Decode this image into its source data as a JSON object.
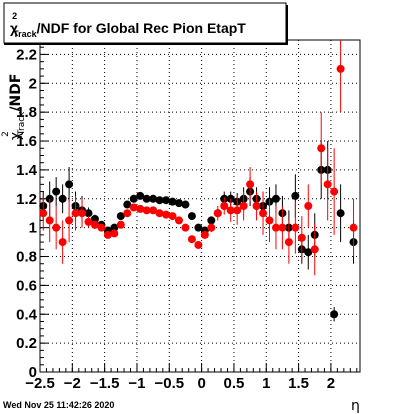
{
  "window": {
    "timestamp": "Wed Nov 25 11:42:26 2020"
  },
  "chart_data": {
    "type": "scatter",
    "title": {
      "chi": "χ",
      "sup": "2",
      "sub": "Track",
      "rest": "/NDF for Global Rec Pion EtapT"
    },
    "xlabel": "η",
    "ylabel": {
      "chi": "χ",
      "sup": "2",
      "sub": "Track",
      "rest": "/NDF"
    },
    "xlim": [
      -2.5,
      2.45
    ],
    "ylim": [
      0,
      2.3
    ],
    "grid": true,
    "x_ticks": [
      -2.5,
      -2,
      -1.5,
      -1,
      -0.5,
      0,
      0.5,
      1,
      1.5,
      2
    ],
    "x_tick_labels": [
      "−2.5",
      "−2",
      "−1.5",
      "−1",
      "−0.5",
      "0",
      "0.5",
      "1",
      "1.5",
      "2"
    ],
    "y_ticks": [
      0,
      0.2,
      0.4,
      0.6,
      0.8,
      1,
      1.2,
      1.4,
      1.6,
      1.8,
      2,
      2.2
    ],
    "y_tick_labels": [
      "0",
      "0.2",
      "0.4",
      "0.6",
      "0.8",
      "1",
      "1.2",
      "1.4",
      "1.6",
      "1.8",
      "2",
      "2.2"
    ],
    "series": [
      {
        "color": "#000000",
        "x": [
          -2.45,
          -2.35,
          -2.25,
          -2.15,
          -2.05,
          -1.95,
          -1.85,
          -1.75,
          -1.65,
          -1.55,
          -1.45,
          -1.35,
          -1.25,
          -1.15,
          -1.05,
          -0.95,
          -0.85,
          -0.75,
          -0.65,
          -0.55,
          -0.45,
          -0.35,
          -0.25,
          -0.15,
          -0.05,
          0.05,
          0.15,
          0.25,
          0.35,
          0.45,
          0.55,
          0.65,
          0.75,
          0.85,
          0.95,
          1.05,
          1.15,
          1.25,
          1.35,
          1.45,
          1.55,
          1.65,
          1.75,
          1.85,
          1.95,
          2.05,
          2.15,
          2.35
        ],
        "y": [
          1.15,
          1.2,
          1.25,
          1.2,
          1.3,
          1.15,
          1.12,
          1.1,
          1.06,
          1.02,
          0.98,
          1.0,
          1.08,
          1.16,
          1.2,
          1.22,
          1.2,
          1.2,
          1.19,
          1.19,
          1.18,
          1.17,
          1.16,
          1.08,
          1.0,
          0.98,
          1.05,
          1.1,
          1.2,
          1.2,
          1.18,
          1.2,
          1.25,
          1.2,
          1.15,
          1.18,
          1.2,
          1.1,
          1.0,
          1.22,
          0.85,
          0.83,
          0.95,
          1.4,
          1.4,
          0.4,
          1.1,
          0.9
        ],
        "err": [
          0.1,
          0.12,
          0.1,
          0.1,
          0.12,
          0.1,
          0.1,
          0.04,
          0.03,
          0.02,
          0.02,
          0.02,
          0.02,
          0.02,
          0.02,
          0.02,
          0.02,
          0.02,
          0.02,
          0.02,
          0.02,
          0.02,
          0.02,
          0.02,
          0.02,
          0.02,
          0.02,
          0.03,
          0.05,
          0.05,
          0.06,
          0.08,
          0.1,
          0.08,
          0.1,
          0.1,
          0.1,
          0.12,
          0.12,
          0.15,
          0.1,
          0.12,
          0.15,
          0.2,
          0.2,
          0.05,
          0.2,
          0.15
        ]
      },
      {
        "color": "#ff0000",
        "x": [
          -2.45,
          -2.35,
          -2.25,
          -2.15,
          -2.05,
          -1.95,
          -1.85,
          -1.75,
          -1.65,
          -1.55,
          -1.45,
          -1.35,
          -1.25,
          -1.15,
          -1.05,
          -0.95,
          -0.85,
          -0.75,
          -0.65,
          -0.55,
          -0.45,
          -0.35,
          -0.25,
          -0.15,
          -0.05,
          0.05,
          0.15,
          0.25,
          0.35,
          0.45,
          0.55,
          0.65,
          0.75,
          0.85,
          0.95,
          1.05,
          1.15,
          1.25,
          1.35,
          1.45,
          1.55,
          1.65,
          1.75,
          1.85,
          1.95,
          2.05,
          2.15,
          2.35
        ],
        "y": [
          1.1,
          1.05,
          1.0,
          0.9,
          1.05,
          1.1,
          1.1,
          1.04,
          1.02,
          1.0,
          0.95,
          0.96,
          1.02,
          1.1,
          1.14,
          1.13,
          1.12,
          1.12,
          1.1,
          1.09,
          1.08,
          1.05,
          1.0,
          0.92,
          0.88,
          0.95,
          1.0,
          1.1,
          1.15,
          1.12,
          1.12,
          1.15,
          1.3,
          1.15,
          1.1,
          1.05,
          1.0,
          1.0,
          0.9,
          1.0,
          0.93,
          1.15,
          0.85,
          1.55,
          1.3,
          1.25,
          2.1,
          1.0
        ],
        "err": [
          0.12,
          0.15,
          0.15,
          0.15,
          0.15,
          0.12,
          0.1,
          0.04,
          0.03,
          0.02,
          0.02,
          0.02,
          0.02,
          0.02,
          0.02,
          0.02,
          0.02,
          0.02,
          0.02,
          0.02,
          0.02,
          0.02,
          0.02,
          0.02,
          0.02,
          0.02,
          0.03,
          0.05,
          0.06,
          0.08,
          0.1,
          0.1,
          0.12,
          0.1,
          0.15,
          0.15,
          0.15,
          0.15,
          0.15,
          0.18,
          0.15,
          0.15,
          0.18,
          0.25,
          0.25,
          0.3,
          0.3,
          0.2
        ]
      }
    ]
  }
}
